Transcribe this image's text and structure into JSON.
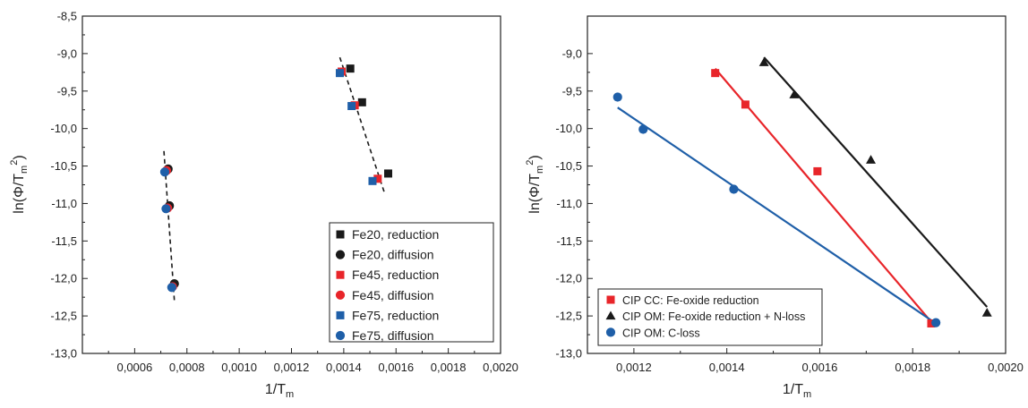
{
  "chart_data": [
    {
      "type": "scatter",
      "xlabel": "1/T",
      "xlabel_sub": "m",
      "ylabel": "ln(Φ/T",
      "ylabel_sub": "m",
      "ylabel_sup": "2",
      "ylabel_end": ")",
      "xlim": [
        0.0004,
        0.002
      ],
      "ylim": [
        -13.0,
        -8.5
      ],
      "xticks": [
        0.0006,
        0.0008,
        0.001,
        0.0012,
        0.0014,
        0.0016,
        0.0018,
        0.002
      ],
      "xtick_labels": [
        "0,0006",
        "0,0008",
        "0,0010",
        "0,0012",
        "0,0014",
        "0,0016",
        "0,0018",
        "0,0020"
      ],
      "yticks": [
        -13.0,
        -12.5,
        -12.0,
        -11.5,
        -11.0,
        -10.5,
        -10.0,
        -9.5,
        -9.0,
        -8.5
      ],
      "ytick_labels": [
        "-13,0",
        "-12,5",
        "-12,0",
        "-11,5",
        "-11,0",
        "-10,5",
        "-10,0",
        "-9,5",
        "-9,0",
        "-8,5"
      ],
      "legend_position": "bottom-right",
      "series": [
        {
          "name": "Fe20, reduction",
          "marker": "square",
          "color": "#1a1a1a",
          "x": [
            0.001425,
            0.00147,
            0.00157
          ],
          "y": [
            -9.2,
            -9.65,
            -10.6
          ]
        },
        {
          "name": "Fe20, diffusion",
          "marker": "circle",
          "color": "#1a1a1a",
          "x": [
            0.000728,
            0.000733,
            0.000752
          ],
          "y": [
            -10.54,
            -11.03,
            -12.07
          ]
        },
        {
          "name": "Fe45, reduction",
          "marker": "square",
          "color": "#e8252a",
          "x": [
            0.001392,
            0.001442,
            0.00153
          ],
          "y": [
            -9.24,
            -9.69,
            -10.67
          ]
        },
        {
          "name": "Fe45, diffusion",
          "marker": "circle",
          "color": "#e8252a",
          "x": [
            0.000722,
            0.000726,
            0.000745
          ],
          "y": [
            -10.56,
            -11.06,
            -12.11
          ]
        },
        {
          "name": "Fe75, reduction",
          "marker": "square",
          "color": "#1f5fa8",
          "x": [
            0.001385,
            0.00143,
            0.00151
          ],
          "y": [
            -9.26,
            -9.7,
            -10.7
          ]
        },
        {
          "name": "Fe75, diffusion",
          "marker": "circle",
          "color": "#1f5fa8",
          "x": [
            0.000715,
            0.00072,
            0.000742
          ],
          "y": [
            -10.58,
            -11.07,
            -12.12
          ]
        }
      ],
      "fit_lines": [
        {
          "style": "dashed",
          "color": "#1a1a1a",
          "x": [
            0.000712,
            0.000752
          ],
          "y": [
            -10.3,
            -12.3
          ]
        },
        {
          "style": "dashed",
          "color": "#1a1a1a",
          "x": [
            0.001385,
            0.001555
          ],
          "y": [
            -9.05,
            -10.85
          ]
        }
      ]
    },
    {
      "type": "scatter",
      "xlabel": "1/T",
      "xlabel_sub": "m",
      "ylabel": "ln(Φ/T",
      "ylabel_sub": "m",
      "ylabel_sup": "2",
      "ylabel_end": ")",
      "xlim": [
        0.0011,
        0.002
      ],
      "ylim": [
        -13.0,
        -8.5
      ],
      "xticks": [
        0.0012,
        0.0014,
        0.0016,
        0.0018,
        0.002
      ],
      "xtick_labels": [
        "0,0012",
        "0,0014",
        "0,0016",
        "0,0018",
        "0,0020"
      ],
      "yticks": [
        -13.0,
        -12.5,
        -12.0,
        -11.5,
        -11.0,
        -10.5,
        -10.0,
        -9.5,
        -9.0
      ],
      "ytick_labels": [
        "-13,0",
        "-12,5",
        "-12,0",
        "-11,5",
        "-11,0",
        "-10,5",
        "-10,0",
        "-9,5",
        "-9,0"
      ],
      "legend_position": "bottom-left",
      "series": [
        {
          "name": "CIP CC: Fe-oxide reduction",
          "marker": "square",
          "color": "#e8252a",
          "x": [
            0.001375,
            0.00144,
            0.001595,
            0.00184
          ],
          "y": [
            -9.26,
            -9.68,
            -10.57,
            -12.6
          ]
        },
        {
          "name": "CIP OM: Fe-oxide reduction + N-loss",
          "marker": "triangle",
          "color": "#1a1a1a",
          "x": [
            0.00148,
            0.001545,
            0.00171,
            0.00196
          ],
          "y": [
            -9.12,
            -9.55,
            -10.42,
            -12.46
          ]
        },
        {
          "name": "CIP OM: C-loss",
          "marker": "circle",
          "color": "#1f5fa8",
          "x": [
            0.001165,
            0.00122,
            0.001415,
            0.00185
          ],
          "y": [
            -9.58,
            -10.01,
            -10.81,
            -12.59
          ]
        }
      ],
      "fit_lines": [
        {
          "style": "solid",
          "color": "#e8252a",
          "x": [
            0.001375,
            0.00184
          ],
          "y": [
            -9.2,
            -12.58
          ]
        },
        {
          "style": "solid",
          "color": "#1a1a1a",
          "x": [
            0.00148,
            0.00196
          ],
          "y": [
            -9.05,
            -12.38
          ]
        },
        {
          "style": "solid",
          "color": "#1f5fa8",
          "x": [
            0.001165,
            0.00185
          ],
          "y": [
            -9.72,
            -12.6
          ]
        }
      ]
    }
  ]
}
